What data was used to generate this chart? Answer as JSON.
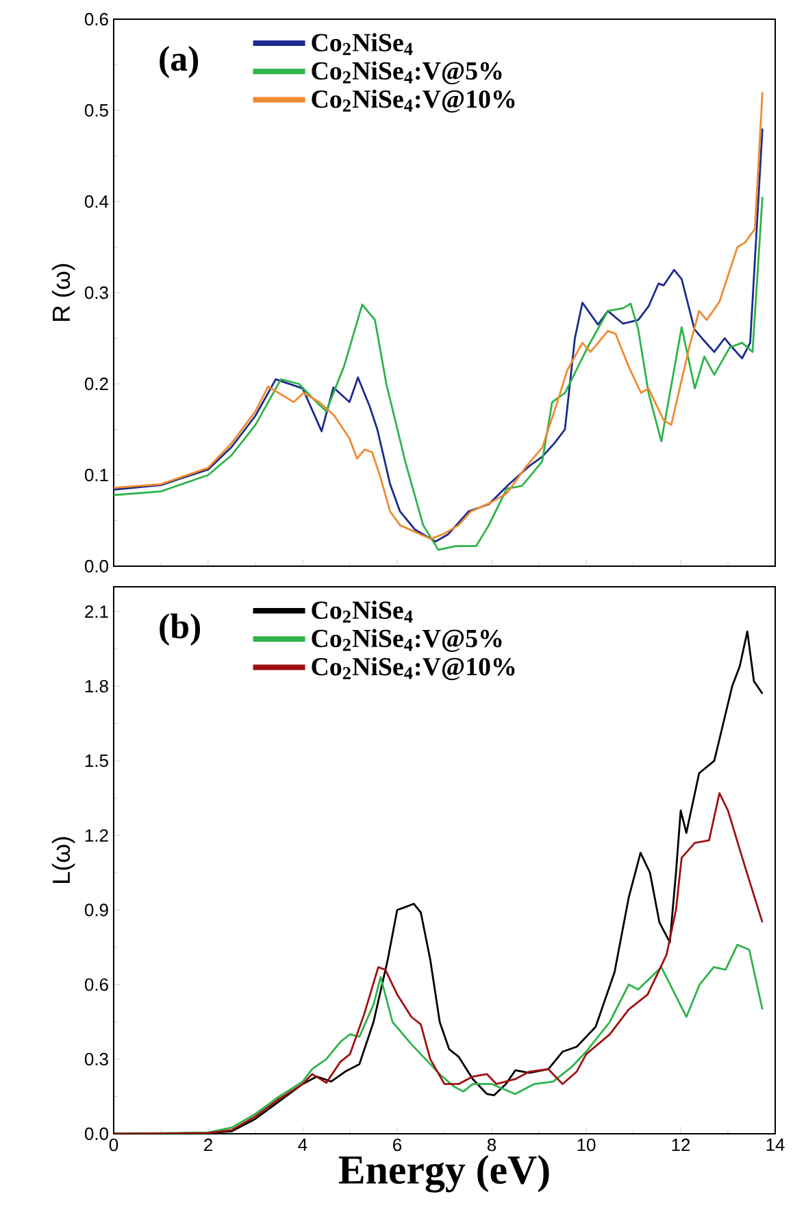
{
  "chart_data": [
    {
      "type": "line",
      "ylabel": "R (ω)",
      "annotations": [
        "(a)"
      ],
      "legend": "top left",
      "tick_labels": "y",
      "xlim": [
        0,
        14
      ],
      "xticks": [
        0,
        2,
        4,
        6,
        8,
        10,
        12,
        14
      ],
      "ylim": [
        0,
        0.6
      ],
      "yticks": [
        {
          "value": 0,
          "label": "0.0"
        },
        0.1,
        0.2,
        0.3,
        0.4,
        0.5,
        0.6
      ],
      "series": [
        {
          "name": "Co$_{2}$NiSe$_{4}$",
          "color": "#1c2a8c",
          "x": [
            0,
            1,
            2,
            2.5,
            3,
            3.43,
            4.0,
            4.4,
            4.65,
            4.99,
            5.17,
            5.42,
            5.58,
            5.85,
            6.06,
            6.38,
            6.81,
            7.08,
            7.51,
            7.94,
            8.37,
            8.8,
            9.07,
            9.33,
            9.55,
            9.76,
            9.92,
            10.25,
            10.46,
            10.78,
            11.1,
            11.32,
            11.53,
            11.64,
            11.86,
            12.02,
            12.29,
            12.45,
            12.71,
            12.93,
            13.09,
            13.3,
            13.47,
            13.73
          ],
          "values": [
            0.084,
            0.089,
            0.106,
            0.131,
            0.165,
            0.205,
            0.195,
            0.148,
            0.196,
            0.18,
            0.207,
            0.175,
            0.15,
            0.09,
            0.06,
            0.04,
            0.027,
            0.035,
            0.06,
            0.068,
            0.09,
            0.11,
            0.12,
            0.135,
            0.15,
            0.25,
            0.289,
            0.265,
            0.28,
            0.266,
            0.27,
            0.285,
            0.31,
            0.308,
            0.325,
            0.315,
            0.26,
            0.25,
            0.235,
            0.25,
            0.24,
            0.228,
            0.245,
            0.48
          ]
        },
        {
          "name": "Co$_{2}$NiSe$_{4}$:V@5%",
          "color": "#2db34a",
          "x": [
            0,
            1,
            2,
            2.5,
            3,
            3.54,
            3.92,
            4.29,
            4.5,
            4.88,
            5.26,
            5.53,
            5.77,
            6.17,
            6.55,
            6.87,
            7.24,
            7.67,
            7.94,
            8.32,
            8.64,
            9.07,
            9.28,
            9.55,
            10.03,
            10.46,
            10.78,
            10.94,
            11.1,
            11.32,
            11.59,
            12.02,
            12.3,
            12.5,
            12.71,
            13.04,
            13.3,
            13.52,
            13.73
          ],
          "values": [
            0.078,
            0.082,
            0.1,
            0.122,
            0.155,
            0.205,
            0.2,
            0.18,
            0.17,
            0.22,
            0.287,
            0.27,
            0.2,
            0.115,
            0.045,
            0.018,
            0.022,
            0.022,
            0.045,
            0.085,
            0.088,
            0.115,
            0.18,
            0.19,
            0.24,
            0.28,
            0.283,
            0.288,
            0.26,
            0.19,
            0.137,
            0.262,
            0.195,
            0.23,
            0.21,
            0.24,
            0.245,
            0.235,
            0.405
          ]
        },
        {
          "name": "Co$_{2}$NiSe$_{4}$:V@10%",
          "color": "#f08a30",
          "x": [
            0,
            1,
            2,
            2.5,
            3,
            3.27,
            3.81,
            4.02,
            4.35,
            4.67,
            4.99,
            5.15,
            5.31,
            5.47,
            5.63,
            5.85,
            6.06,
            6.49,
            6.71,
            6.97,
            7.3,
            7.56,
            7.99,
            8.32,
            8.74,
            9.07,
            9.39,
            9.6,
            9.92,
            10.09,
            10.46,
            10.62,
            10.89,
            11.16,
            11.32,
            11.64,
            11.8,
            12.18,
            12.39,
            12.55,
            12.82,
            13.2,
            13.36,
            13.57,
            13.73
          ],
          "values": [
            0.086,
            0.09,
            0.108,
            0.135,
            0.17,
            0.197,
            0.18,
            0.19,
            0.18,
            0.165,
            0.14,
            0.118,
            0.128,
            0.125,
            0.1,
            0.06,
            0.045,
            0.035,
            0.03,
            0.035,
            0.045,
            0.06,
            0.07,
            0.08,
            0.11,
            0.13,
            0.18,
            0.215,
            0.245,
            0.235,
            0.258,
            0.255,
            0.22,
            0.19,
            0.195,
            0.16,
            0.155,
            0.24,
            0.28,
            0.27,
            0.29,
            0.35,
            0.355,
            0.37,
            0.52
          ]
        }
      ]
    },
    {
      "type": "line",
      "xlabel": "Energy (eV)",
      "ylabel": "L(ω)",
      "annotations": [
        "(b)"
      ],
      "legend": "top left",
      "xlim": [
        0,
        14
      ],
      "xticks": [
        0,
        2,
        4,
        6,
        8,
        10,
        12,
        14
      ],
      "ylim": [
        0,
        2.2
      ],
      "yticks": [
        {
          "value": 0,
          "label": "0.0"
        },
        0.3,
        0.6,
        0.9,
        1.2,
        1.5,
        1.8,
        2.1
      ],
      "series": [
        {
          "name": "Co$_{2}$NiSe$_{4}$",
          "color": "#000000",
          "x": [
            0,
            2,
            2.5,
            3,
            3.5,
            4,
            4.3,
            4.6,
            4.9,
            5.2,
            5.5,
            5.8,
            6.0,
            6.15,
            6.35,
            6.5,
            6.7,
            6.9,
            7.1,
            7.3,
            7.6,
            7.9,
            8.05,
            8.3,
            8.5,
            8.8,
            9.2,
            9.5,
            9.8,
            10.2,
            10.6,
            10.9,
            11.15,
            11.35,
            11.55,
            11.77,
            11.9,
            12.0,
            12.12,
            12.39,
            12.71,
            12.9,
            13.09,
            13.25,
            13.41,
            13.55,
            13.73
          ],
          "values": [
            0,
            0.003,
            0.01,
            0.06,
            0.13,
            0.2,
            0.23,
            0.21,
            0.25,
            0.28,
            0.45,
            0.7,
            0.9,
            0.91,
            0.925,
            0.89,
            0.7,
            0.45,
            0.34,
            0.31,
            0.22,
            0.16,
            0.155,
            0.2,
            0.255,
            0.245,
            0.26,
            0.33,
            0.35,
            0.43,
            0.65,
            0.95,
            1.13,
            1.05,
            0.85,
            0.77,
            1.05,
            1.3,
            1.21,
            1.45,
            1.5,
            1.65,
            1.8,
            1.88,
            2.02,
            1.82,
            1.77
          ]
        },
        {
          "name": "Co$_{2}$NiSe$_{4}$:V@5%",
          "color": "#2db34a",
          "x": [
            0,
            2,
            2.5,
            3,
            3.5,
            4,
            4.2,
            4.5,
            4.8,
            5.0,
            5.2,
            5.5,
            5.65,
            5.9,
            6.3,
            6.6,
            6.9,
            7.2,
            7.4,
            7.6,
            8.0,
            8.5,
            8.9,
            9.3,
            9.7,
            10.0,
            10.5,
            10.9,
            11.1,
            11.59,
            12.12,
            12.4,
            12.7,
            12.95,
            13.2,
            13.45,
            13.73
          ],
          "values": [
            0,
            0.005,
            0.025,
            0.08,
            0.15,
            0.21,
            0.26,
            0.3,
            0.37,
            0.4,
            0.39,
            0.52,
            0.63,
            0.45,
            0.36,
            0.3,
            0.24,
            0.19,
            0.17,
            0.2,
            0.2,
            0.16,
            0.2,
            0.21,
            0.27,
            0.33,
            0.45,
            0.6,
            0.58,
            0.67,
            0.47,
            0.6,
            0.67,
            0.66,
            0.76,
            0.74,
            0.5
          ]
        },
        {
          "name": "Co$_{2}$NiSe$_{4}$:V@10%",
          "color": "#a01010",
          "x": [
            0,
            2,
            2.5,
            3,
            3.5,
            4,
            4.2,
            4.5,
            4.8,
            5.0,
            5.3,
            5.6,
            5.75,
            6.0,
            6.3,
            6.5,
            6.7,
            7.0,
            7.3,
            7.6,
            7.9,
            8.1,
            8.5,
            8.8,
            9.2,
            9.5,
            9.8,
            10.0,
            10.5,
            10.9,
            11.3,
            11.7,
            11.9,
            12.02,
            12.3,
            12.6,
            12.82,
            13.0,
            13.4,
            13.73
          ],
          "values": [
            0,
            0.003,
            0.015,
            0.07,
            0.14,
            0.2,
            0.24,
            0.205,
            0.29,
            0.32,
            0.48,
            0.67,
            0.66,
            0.56,
            0.47,
            0.44,
            0.3,
            0.2,
            0.2,
            0.23,
            0.24,
            0.2,
            0.22,
            0.25,
            0.26,
            0.2,
            0.25,
            0.32,
            0.4,
            0.5,
            0.56,
            0.72,
            0.9,
            1.11,
            1.17,
            1.18,
            1.37,
            1.3,
            1.05,
            0.85
          ]
        }
      ]
    }
  ]
}
